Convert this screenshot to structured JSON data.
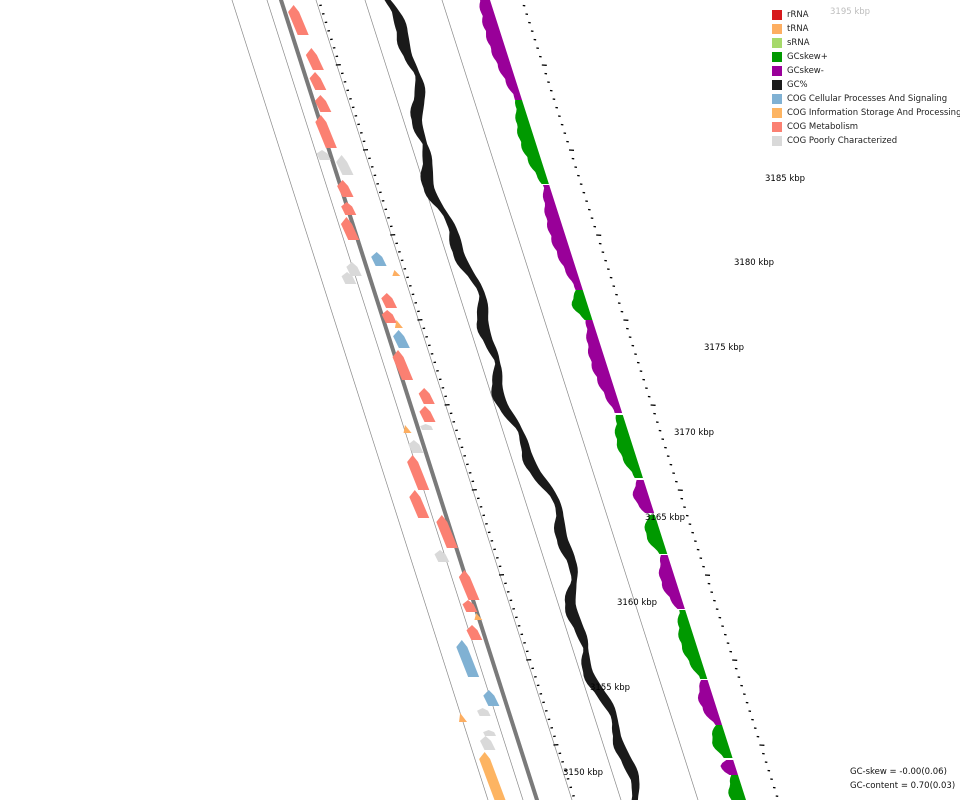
{
  "legend": [
    {
      "label": "rRNA",
      "color": "#d7191c"
    },
    {
      "label": "tRNA",
      "color": "#fdae61"
    },
    {
      "label": "sRNA",
      "color": "#a6d96a"
    },
    {
      "label": "GCskew+",
      "color": "#009900"
    },
    {
      "label": "GCskew-",
      "color": "#990099"
    },
    {
      "label": "GC%",
      "color": "#1a1a1a"
    },
    {
      "label": "COG Cellular Processes And Signaling",
      "color": "#80b1d3"
    },
    {
      "label": "COG Information Storage And Processing",
      "color": "#fdb462"
    },
    {
      "label": "COG Metabolism",
      "color": "#fb8072"
    },
    {
      "label": "COG Poorly Characterized",
      "color": "#d9d9d9"
    }
  ],
  "axis": {
    "labels": [
      "3150 kbp",
      "3155 kbp",
      "3160 kbp",
      "3165 kbp",
      "3170 kbp",
      "3175 kbp",
      "3180 kbp",
      "3185 kbp",
      "3195 kbp"
    ]
  },
  "stats": {
    "gc_skew": "GC-skew = -0.00(0.06)",
    "gc_content": "GC-content = 0.70(0.03)"
  }
}
